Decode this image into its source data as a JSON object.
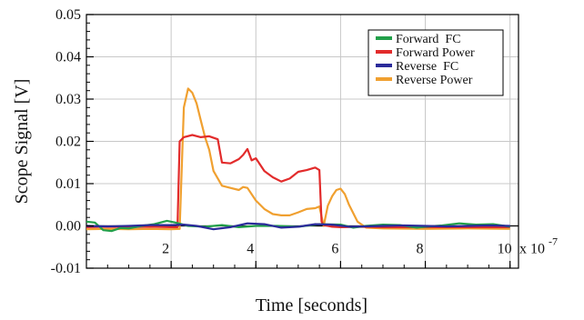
{
  "chart_data": {
    "type": "line",
    "title": "",
    "xlabel": "Time [seconds]",
    "ylabel": "Scope Signal [V]",
    "x_multiplier_label": "x 10",
    "x_multiplier_exponent": "-7",
    "xlim": [
      0,
      10.2
    ],
    "ylim": [
      -0.01,
      0.05
    ],
    "x_ticks": [
      2,
      4,
      6,
      8,
      10
    ],
    "x_tick_labels": [
      "2",
      "4",
      "6",
      "8",
      "10"
    ],
    "y_ticks": [
      -0.01,
      0.0,
      0.01,
      0.02,
      0.03,
      0.04,
      0.05
    ],
    "y_tick_labels": [
      "-0.01",
      "0.00",
      "0.01",
      "0.02",
      "0.03",
      "0.04",
      "0.05"
    ],
    "grid": true,
    "legend_position": "top-right",
    "series": [
      {
        "name": "Forward  FC",
        "color": "#22a04a",
        "x": [
          0.0,
          0.2,
          0.4,
          0.6,
          0.8,
          1.0,
          1.3,
          1.6,
          1.9,
          2.1,
          2.4,
          2.8,
          3.2,
          3.6,
          4.0,
          4.5,
          5.0,
          5.5,
          6.0,
          6.3,
          6.6,
          7.0,
          7.4,
          7.8,
          8.0,
          8.4,
          8.8,
          9.2,
          9.6,
          10.0
        ],
        "y": [
          0.001,
          0.0008,
          -0.001,
          -0.0012,
          -0.0005,
          -0.0006,
          0.0,
          0.0004,
          0.0012,
          0.0008,
          0.0,
          -0.0002,
          0.0002,
          -0.0003,
          0.0,
          0.0,
          -0.0002,
          0.0004,
          0.0003,
          -0.0004,
          0.0,
          0.0003,
          0.0002,
          -0.0004,
          -0.0002,
          0.0001,
          0.0006,
          0.0003,
          0.0004,
          -0.0002
        ]
      },
      {
        "name": "Forward Power",
        "color": "#e22b2b",
        "x": [
          0.0,
          0.5,
          1.0,
          1.5,
          2.0,
          2.15,
          2.2,
          2.3,
          2.5,
          2.7,
          2.9,
          3.1,
          3.2,
          3.4,
          3.6,
          3.7,
          3.8,
          3.9,
          4.0,
          4.2,
          4.4,
          4.6,
          4.8,
          5.0,
          5.2,
          5.4,
          5.5,
          5.55,
          5.6,
          5.8,
          6.0,
          6.5,
          7.0,
          8.0,
          9.0,
          10.0
        ],
        "y": [
          -0.0003,
          -0.0002,
          -0.0003,
          -0.0002,
          -0.0003,
          -0.0003,
          0.02,
          0.021,
          0.0215,
          0.021,
          0.0212,
          0.0205,
          0.015,
          0.0148,
          0.0158,
          0.0168,
          0.0182,
          0.0155,
          0.016,
          0.013,
          0.0115,
          0.0105,
          0.0112,
          0.0128,
          0.0132,
          0.0138,
          0.0132,
          0.001,
          0.0002,
          -0.0002,
          -0.0003,
          -0.0002,
          -0.0003,
          -0.0003,
          -0.0003,
          -0.0003
        ]
      },
      {
        "name": "Reverse  FC",
        "color": "#2a2a9a",
        "x": [
          0.0,
          0.5,
          1.0,
          1.5,
          2.0,
          2.3,
          2.6,
          3.0,
          3.4,
          3.8,
          4.2,
          4.6,
          5.0,
          5.4,
          5.8,
          6.2,
          6.6,
          7.0,
          7.5,
          8.0,
          8.5,
          9.0,
          9.5,
          10.0
        ],
        "y": [
          0.0,
          -0.0001,
          0.0,
          0.0002,
          0.0002,
          0.0003,
          0.0,
          -0.0008,
          -0.0003,
          0.0006,
          0.0004,
          -0.0004,
          -0.0002,
          0.0004,
          0.0003,
          -0.0002,
          -0.0001,
          0.0,
          0.0001,
          0.0,
          -0.0001,
          0.0,
          0.0001,
          0.0
        ]
      },
      {
        "name": "Reverse Power",
        "color": "#f0a030",
        "x": [
          0.0,
          0.5,
          1.0,
          1.5,
          2.0,
          2.2,
          2.3,
          2.4,
          2.5,
          2.6,
          2.7,
          2.8,
          2.9,
          3.0,
          3.2,
          3.4,
          3.6,
          3.7,
          3.8,
          4.0,
          4.2,
          4.4,
          4.6,
          4.8,
          5.0,
          5.2,
          5.4,
          5.5,
          5.6,
          5.7,
          5.8,
          5.9,
          6.0,
          6.1,
          6.2,
          6.4,
          6.6,
          7.0,
          8.0,
          9.0,
          10.0
        ],
        "y": [
          -0.0008,
          -0.0007,
          -0.0008,
          -0.0007,
          -0.0008,
          -0.0007,
          0.028,
          0.0325,
          0.0315,
          0.029,
          0.025,
          0.021,
          0.018,
          0.013,
          0.0095,
          0.009,
          0.0085,
          0.0092,
          0.009,
          0.006,
          0.004,
          0.0028,
          0.0025,
          0.0025,
          0.0032,
          0.004,
          0.0042,
          0.0046,
          0.0,
          0.0048,
          0.007,
          0.0085,
          0.0088,
          0.0075,
          0.005,
          0.001,
          -0.0004,
          -0.0006,
          -0.0007,
          -0.0006,
          -0.0007
        ]
      }
    ]
  }
}
